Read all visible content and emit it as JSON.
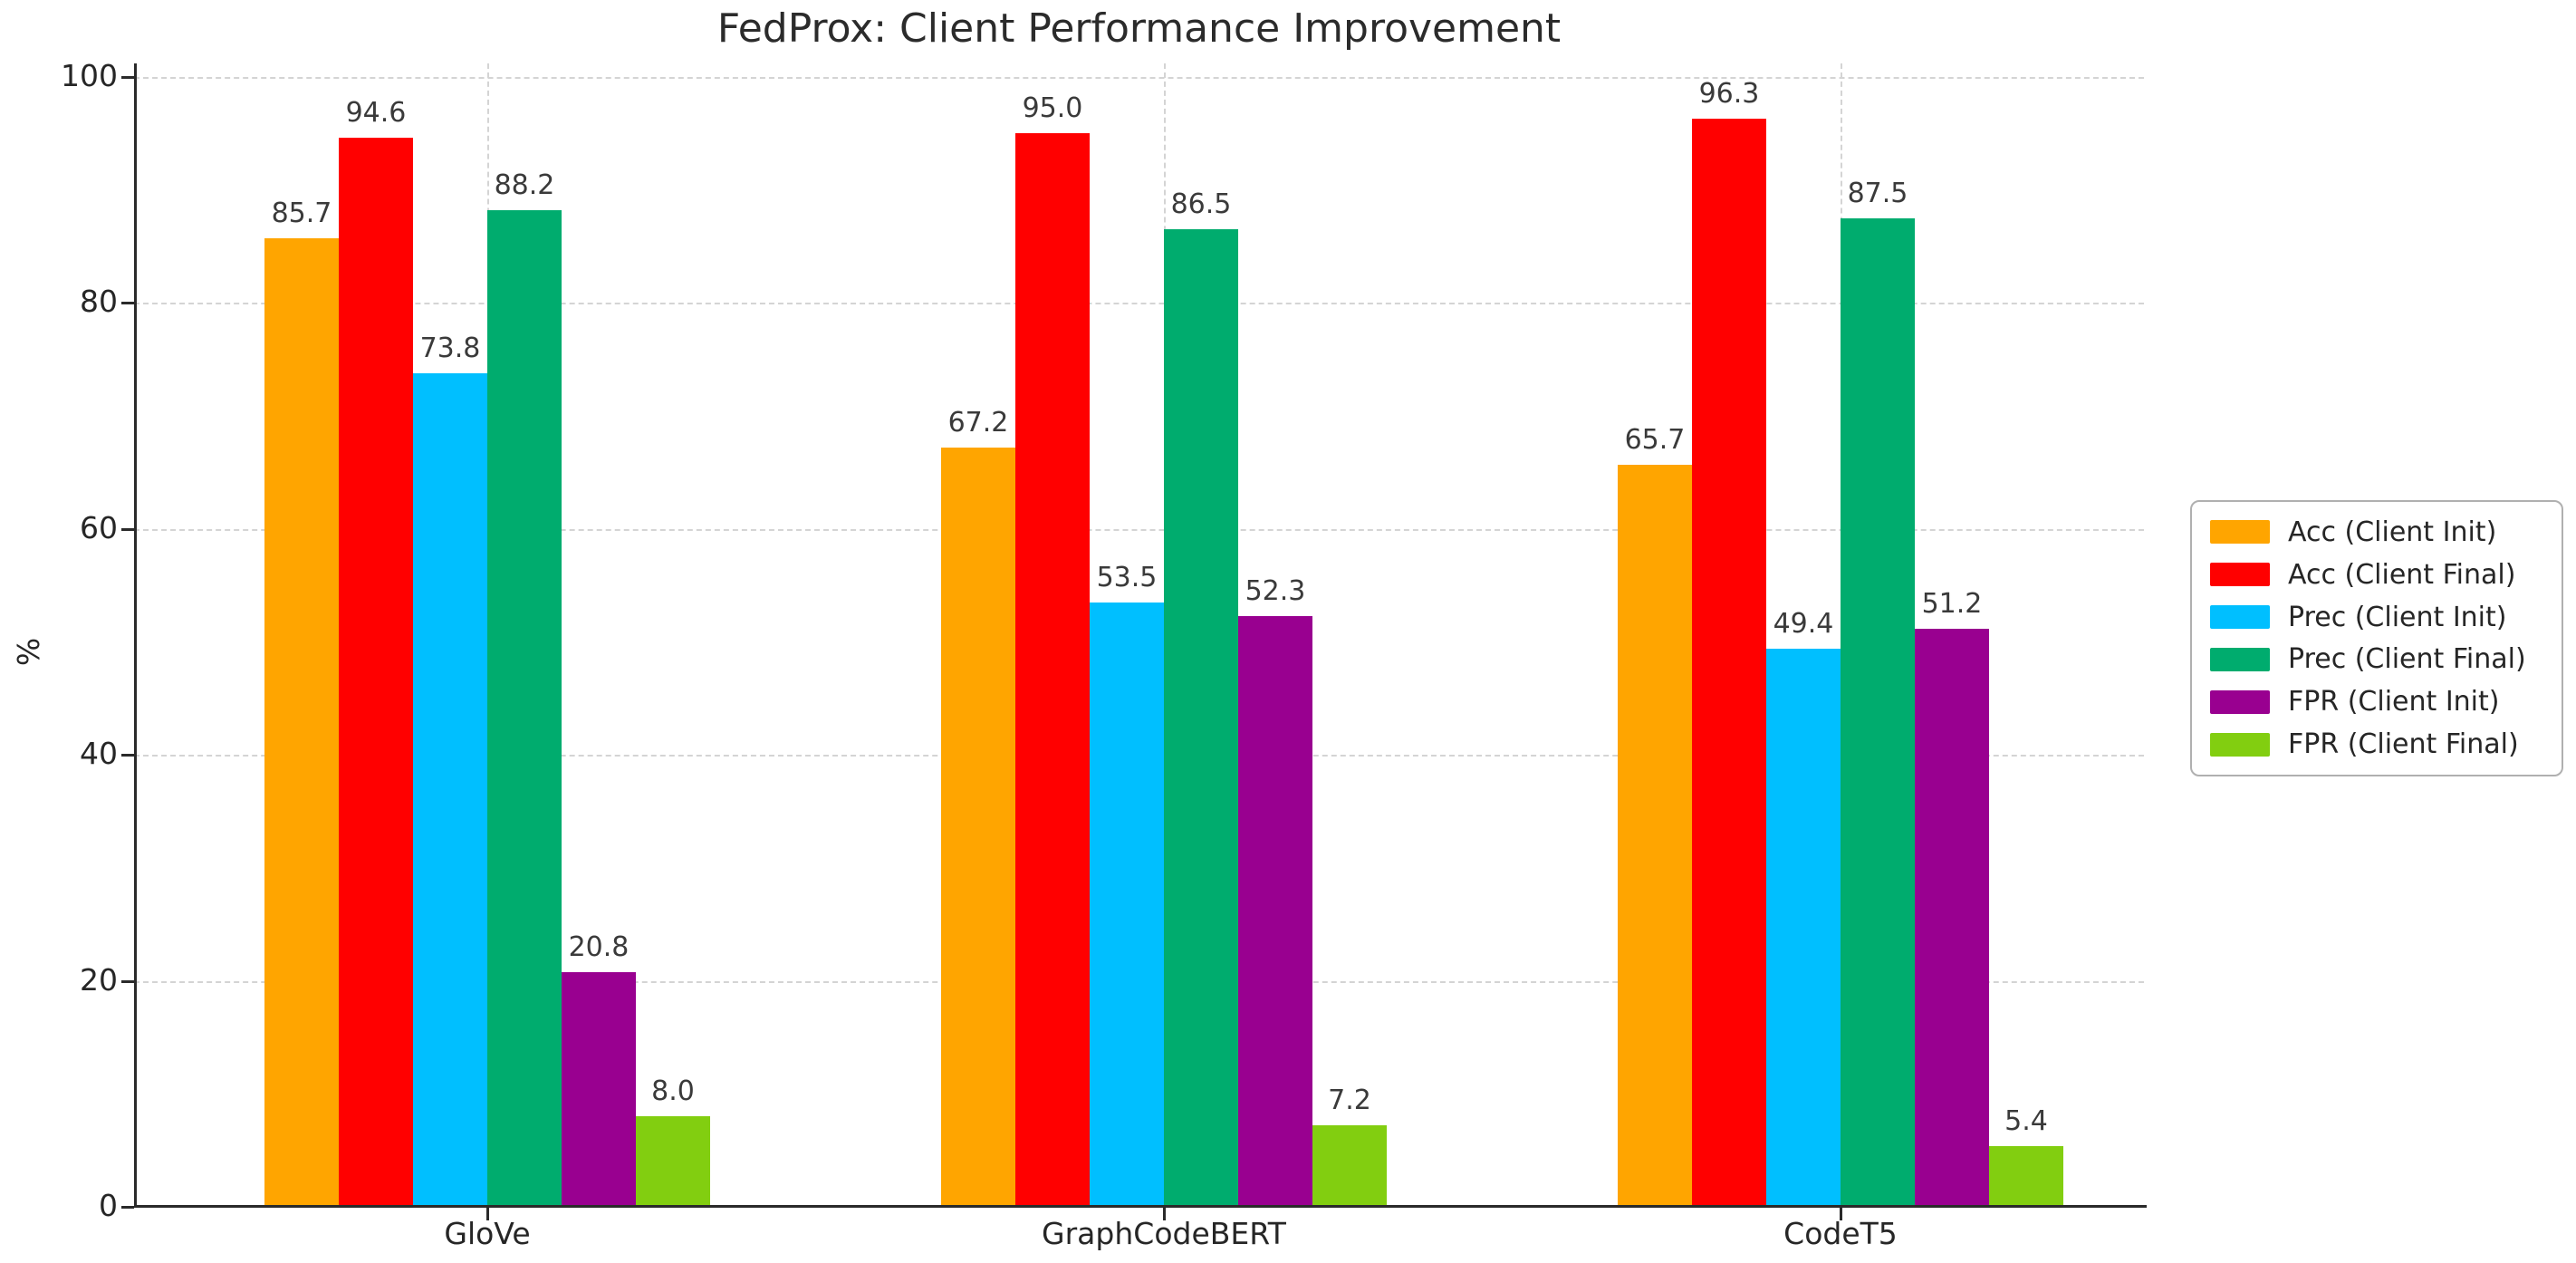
{
  "title": "FedProx: Client Performance Improvement",
  "chart_data": {
    "type": "bar",
    "title": "FedProx: Client Performance Improvement",
    "xlabel": "",
    "ylabel": "%",
    "ylim": [
      0,
      100
    ],
    "yticks": [
      0,
      20,
      40,
      60,
      80,
      100
    ],
    "categories": [
      "GloVe",
      "GraphCodeBERT",
      "CodeT5"
    ],
    "series": [
      {
        "name": "Acc (Client Init)",
        "color": "#FFA500",
        "values": [
          85.7,
          67.2,
          65.7
        ]
      },
      {
        "name": "Acc (Client Final)",
        "color": "#FF0000",
        "values": [
          94.6,
          95.0,
          96.3
        ]
      },
      {
        "name": "Prec (Client Init)",
        "color": "#00BFFF",
        "values": [
          73.8,
          53.5,
          49.4
        ]
      },
      {
        "name": "Prec (Client Final)",
        "color": "#00AC6E",
        "values": [
          88.2,
          86.5,
          87.5
        ]
      },
      {
        "name": "FPR (Client Init)",
        "color": "#990090",
        "values": [
          20.8,
          52.3,
          51.2
        ]
      },
      {
        "name": "FPR (Client Final)",
        "color": "#82CE10",
        "values": [
          8.0,
          7.2,
          5.4
        ]
      }
    ],
    "bar_labels": [
      [
        "85.7",
        "67.2",
        "65.7"
      ],
      [
        "94.6",
        "95.0",
        "96.3"
      ],
      [
        "73.8",
        "53.5",
        "49.4"
      ],
      [
        "88.2",
        "86.5",
        "87.5"
      ],
      [
        "20.8",
        "52.3",
        "51.2"
      ],
      [
        "8.0",
        "7.2",
        "5.4"
      ]
    ],
    "grid": true,
    "grid_style": "dashed",
    "legend_position": "center right outside"
  },
  "colors": {
    "axis": "#2a2a2a",
    "grid": "#d4d4d4",
    "text": "#262626",
    "value_label": "#3a3a3a",
    "legend_border": "#b0b0b0"
  }
}
